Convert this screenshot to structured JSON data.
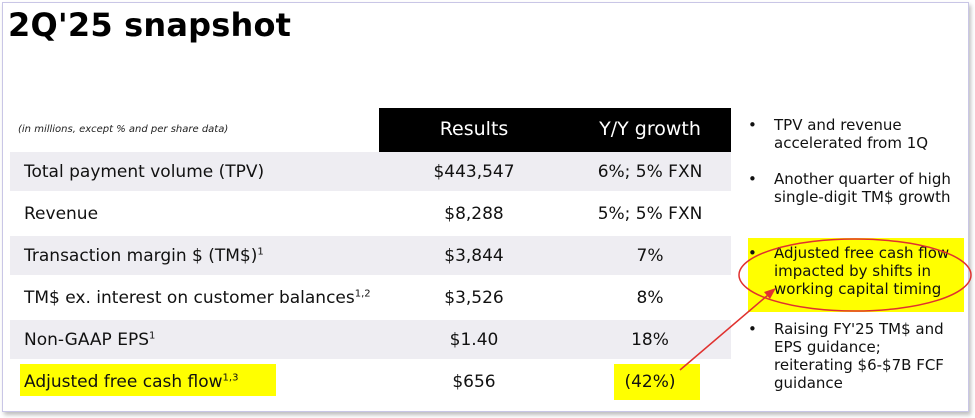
{
  "title": "2Q'25 snapshot",
  "table": {
    "note": "(in millions, except % and per share data)",
    "headers": {
      "results": "Results",
      "growth": "Y/Y growth"
    },
    "rows": [
      {
        "label": "Total payment volume (TPV)",
        "sup": "",
        "result": "$443,547",
        "growth": "6%; 5% FXN",
        "highlighted": false
      },
      {
        "label": "Revenue",
        "sup": "",
        "result": "$8,288",
        "growth": "5%; 5% FXN",
        "highlighted": false
      },
      {
        "label": "Transaction margin $ (TM$)",
        "sup": "1",
        "result": "$3,844",
        "growth": "7%",
        "highlighted": false
      },
      {
        "label": "TM$ ex. interest on customer balances",
        "sup": "1,2",
        "result": "$3,526",
        "growth": "8%",
        "highlighted": false
      },
      {
        "label": "Non-GAAP EPS",
        "sup": "1",
        "result": "$1.40",
        "growth": "18%",
        "highlighted": false
      },
      {
        "label": "Adjusted free cash flow",
        "sup": "1,3",
        "result": "$656",
        "growth": "(42%)",
        "highlighted": true
      }
    ]
  },
  "bullets": [
    {
      "text": "TPV and revenue accelerated from 1Q",
      "highlighted": false
    },
    {
      "text": "Another quarter of high single-digit TM$ growth",
      "highlighted": false
    },
    {
      "text": "Adjusted free cash flow impacted by shifts in working capital timing",
      "highlighted": true
    },
    {
      "text": "Raising FY'25 TM$ and EPS guidance; reiterating $6-$7B FCF guidance",
      "highlighted": false
    }
  ],
  "bullet_char": "•",
  "colors": {
    "header_bg": "#000000",
    "row_band": "#eeedf2",
    "highlight": "#ffff00",
    "annotation": "#e0312f"
  }
}
